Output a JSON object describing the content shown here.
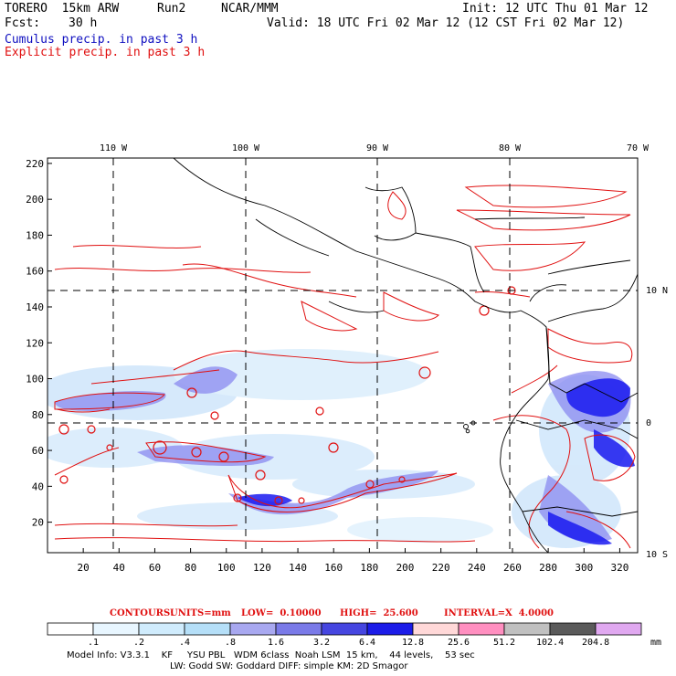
{
  "header": {
    "model": "TORERO  15km ARW",
    "run": "Run2",
    "org": "NCAR/MMM",
    "init": "Init: 12 UTC Thu 01 Mar 12",
    "fcst_label": "Fcst:",
    "fcst_value": "30 h",
    "valid": "Valid: 18 UTC Fri 02 Mar 12 (12 CST Fri 02 Mar 12)",
    "legend_cumulus": "Cumulus precip. in past 3 h",
    "legend_explicit": "Explicit precip. in past 3 h"
  },
  "map": {
    "lon_labels": [
      "110 W",
      "100 W",
      "90 W",
      "80 W",
      "70 W"
    ],
    "lat_labels": [
      "10 N",
      "0",
      "10 S"
    ],
    "y_ticks": [
      "220",
      "200",
      "180",
      "160",
      "140",
      "120",
      "100",
      "80",
      "60",
      "40",
      "20"
    ],
    "x_ticks": [
      "20",
      "40",
      "60",
      "80",
      "100",
      "120",
      "140",
      "160",
      "180",
      "200",
      "220",
      "240",
      "260",
      "280",
      "300",
      "320"
    ],
    "x_range": [
      0,
      330
    ],
    "y_range": [
      3,
      223
    ]
  },
  "contours": {
    "label": "CONTOURS:",
    "units": "UNITS=mm",
    "low": "LOW=  0.10000",
    "high": "HIGH=  25.600",
    "interval": "INTERVAL=X  4.0000"
  },
  "colorbar": {
    "levels": [
      ".1",
      ".2",
      ".4",
      ".8",
      "1.6",
      "3.2",
      "6.4",
      "12.8",
      "25.6",
      "51.2",
      "102.4",
      "204.8"
    ],
    "colors": [
      "#ffffff",
      "#e8f6ff",
      "#d0ecfd",
      "#b5dff8",
      "#a8a8f0",
      "#7a7ae8",
      "#4646e0",
      "#1c1ce8",
      "#ffd8d8",
      "#ff8fc0",
      "#c0c0c0",
      "#5a5a5a",
      "#e0a8f0"
    ],
    "unit": "mm"
  },
  "footer": {
    "line1": "Model Info: V3.3.1    KF     YSU PBL   WDM 6class  Noah LSM  15 km,    44 levels,    53 sec",
    "line2": "LW: Godd SW: Goddard DIFF: simple KM: 2D Smagor"
  },
  "colors": {
    "cumulus": "#1010c0",
    "explicit": "#e01010",
    "precip_light": "#cfe6fb",
    "precip_mid": "#8a8af0",
    "precip_heavy": "#1a1af0"
  }
}
